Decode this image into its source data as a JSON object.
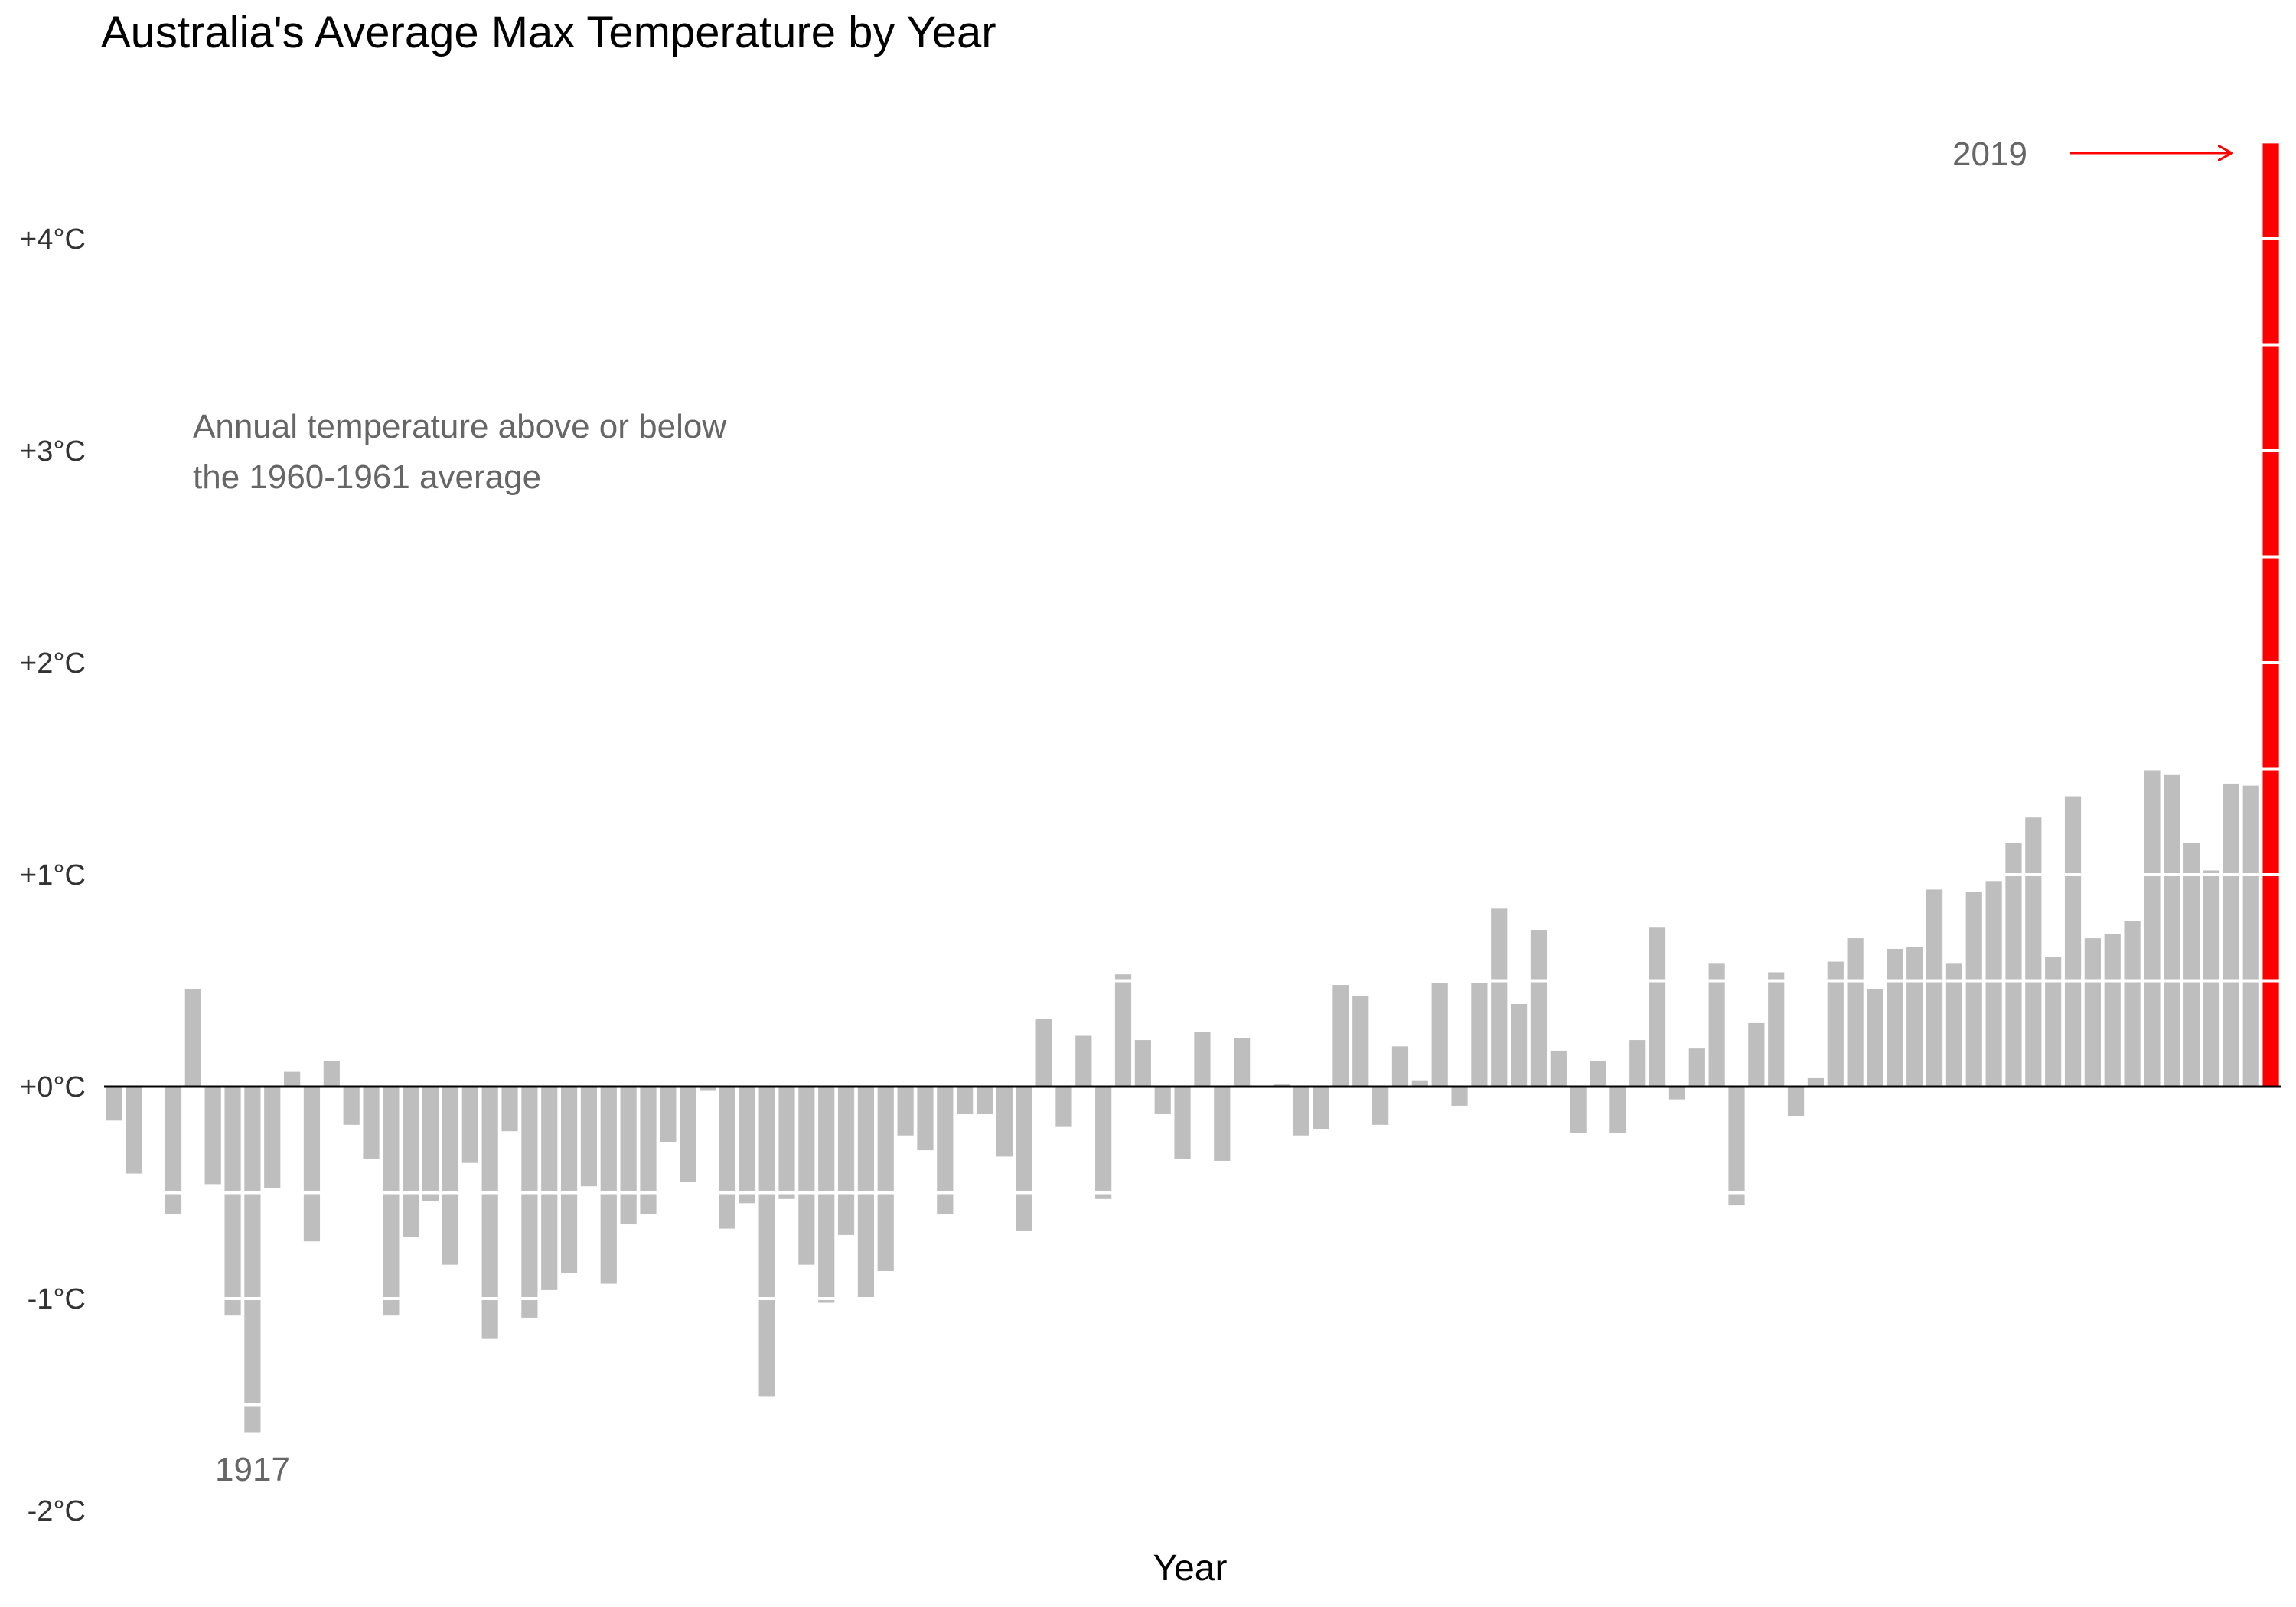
{
  "chart_data": {
    "type": "bar",
    "title": "Australia's Average Max Temperature by Year",
    "xlabel": "Year",
    "ylabel": "",
    "ylim": [
      -2,
      4.45
    ],
    "yticks": [
      {
        "value": 4,
        "label": "+4°C"
      },
      {
        "value": 3,
        "label": "+3°C"
      },
      {
        "value": 2,
        "label": "+2°C"
      },
      {
        "value": 1,
        "label": "+1°C"
      },
      {
        "value": 0,
        "label": "+0°C"
      },
      {
        "value": -1,
        "label": "-1°C"
      },
      {
        "value": -2,
        "label": "-2°C"
      }
    ],
    "grid": false,
    "first_year": 1910,
    "values": [
      -0.16,
      -0.41,
      0.0,
      -0.6,
      0.46,
      -0.46,
      -1.08,
      -1.63,
      -0.48,
      0.07,
      -0.73,
      0.12,
      -0.18,
      -0.34,
      -1.08,
      -0.71,
      -0.54,
      -0.84,
      -0.36,
      -1.19,
      -0.21,
      -1.09,
      -0.96,
      -0.88,
      -0.47,
      -0.93,
      -0.65,
      -0.6,
      -0.26,
      -0.45,
      -0.02,
      -0.67,
      -0.55,
      -1.46,
      -0.53,
      -0.84,
      -1.02,
      -0.7,
      -1.0,
      -0.87,
      -0.23,
      -0.3,
      -0.6,
      -0.13,
      -0.13,
      -0.33,
      -0.68,
      0.32,
      -0.19,
      0.24,
      -0.53,
      0.53,
      0.22,
      -0.13,
      -0.34,
      0.26,
      -0.35,
      0.23,
      0.0,
      0.01,
      -0.23,
      -0.2,
      0.48,
      0.43,
      -0.18,
      0.19,
      0.03,
      0.49,
      -0.09,
      0.49,
      0.84,
      0.39,
      0.74,
      0.17,
      -0.22,
      0.12,
      -0.22,
      0.22,
      0.75,
      -0.06,
      0.18,
      0.58,
      -0.56,
      0.3,
      0.54,
      -0.14,
      0.04,
      0.59,
      0.7,
      0.46,
      0.65,
      0.66,
      0.93,
      0.58,
      0.92,
      0.97,
      1.15,
      1.27,
      0.61,
      1.37,
      0.7,
      0.72,
      0.78,
      1.5,
      1.47,
      1.15,
      1.02,
      1.43,
      1.42,
      4.45
    ],
    "highlight": {
      "year": "2019",
      "color": "#ff0000"
    },
    "min_label": "1917",
    "annotation_lines": [
      "Annual temperature above or below",
      "the 1960-1961 average"
    ],
    "bar_color": "#bebebe",
    "baseline_color": "#000000"
  }
}
